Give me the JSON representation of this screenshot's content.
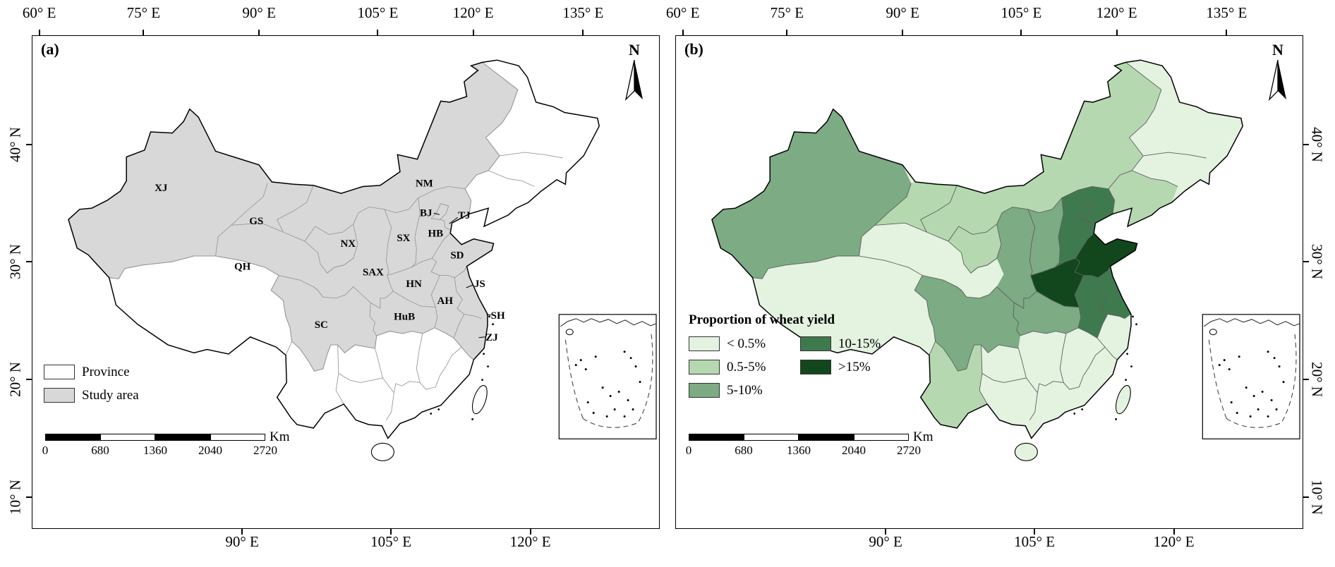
{
  "axes": {
    "top_ticks": [
      "60° E",
      "75° E",
      "90° E",
      "105° E",
      "120° E",
      "135° E"
    ],
    "bottom_ticks": [
      "90° E",
      "105° E",
      "120° E"
    ],
    "lat_ticks": [
      "40° N",
      "30° N",
      "20° N",
      "10° N"
    ]
  },
  "north_label": "N",
  "scalebar": {
    "tick_labels": [
      "0",
      "680",
      "1360",
      "2040",
      "2720"
    ],
    "unit": "Km"
  },
  "panel_a": {
    "tag": "(a)",
    "legend_items": [
      {
        "label": "Province",
        "color": "#ffffff"
      },
      {
        "label": "Study area",
        "color": "#d8d8d8"
      }
    ],
    "province_labels": [
      "XJ",
      "GS",
      "QH",
      "NX",
      "SX",
      "SAX",
      "HN",
      "HuB",
      "SC",
      "NM",
      "BJ",
      "TJ",
      "HB",
      "SD",
      "AH",
      "JS",
      "SH",
      "ZJ"
    ]
  },
  "panel_b": {
    "tag": "(b)",
    "legend_title": "Proportion of wheat yield",
    "classes": [
      {
        "label": "< 0.5%",
        "color": "#e4f2e0"
      },
      {
        "label": "0.5-5%",
        "color": "#b5d8b0"
      },
      {
        "label": "5-10%",
        "color": "#7cab84"
      },
      {
        "label": "10-15%",
        "color": "#3f7a4f"
      },
      {
        "label": ">15%",
        "color": "#12471d"
      }
    ],
    "choropleth": [
      {
        "region": "Xinjiang",
        "class": "5-10%"
      },
      {
        "region": "Inner Mongolia",
        "class": "0.5-5%"
      },
      {
        "region": "Gansu",
        "class": "0.5-5%"
      },
      {
        "region": "Ningxia",
        "class": "0.5-5%"
      },
      {
        "region": "Shaanxi",
        "class": "5-10%"
      },
      {
        "region": "Shanxi",
        "class": "5-10%"
      },
      {
        "region": "Hebei",
        "class": "10-15%"
      },
      {
        "region": "Henan",
        "class": ">15%"
      },
      {
        "region": "Shandong",
        "class": ">15%"
      },
      {
        "region": "Anhui",
        "class": "10-15%"
      },
      {
        "region": "Jiangsu",
        "class": "10-15%"
      },
      {
        "region": "Hubei",
        "class": "5-10%"
      },
      {
        "region": "Sichuan",
        "class": "5-10%"
      },
      {
        "region": "Yunnan",
        "class": "0.5-5%"
      },
      {
        "region": "Liaoning",
        "class": "0.5-5%"
      },
      {
        "region": "Other provinces",
        "class": "< 0.5%"
      }
    ]
  }
}
